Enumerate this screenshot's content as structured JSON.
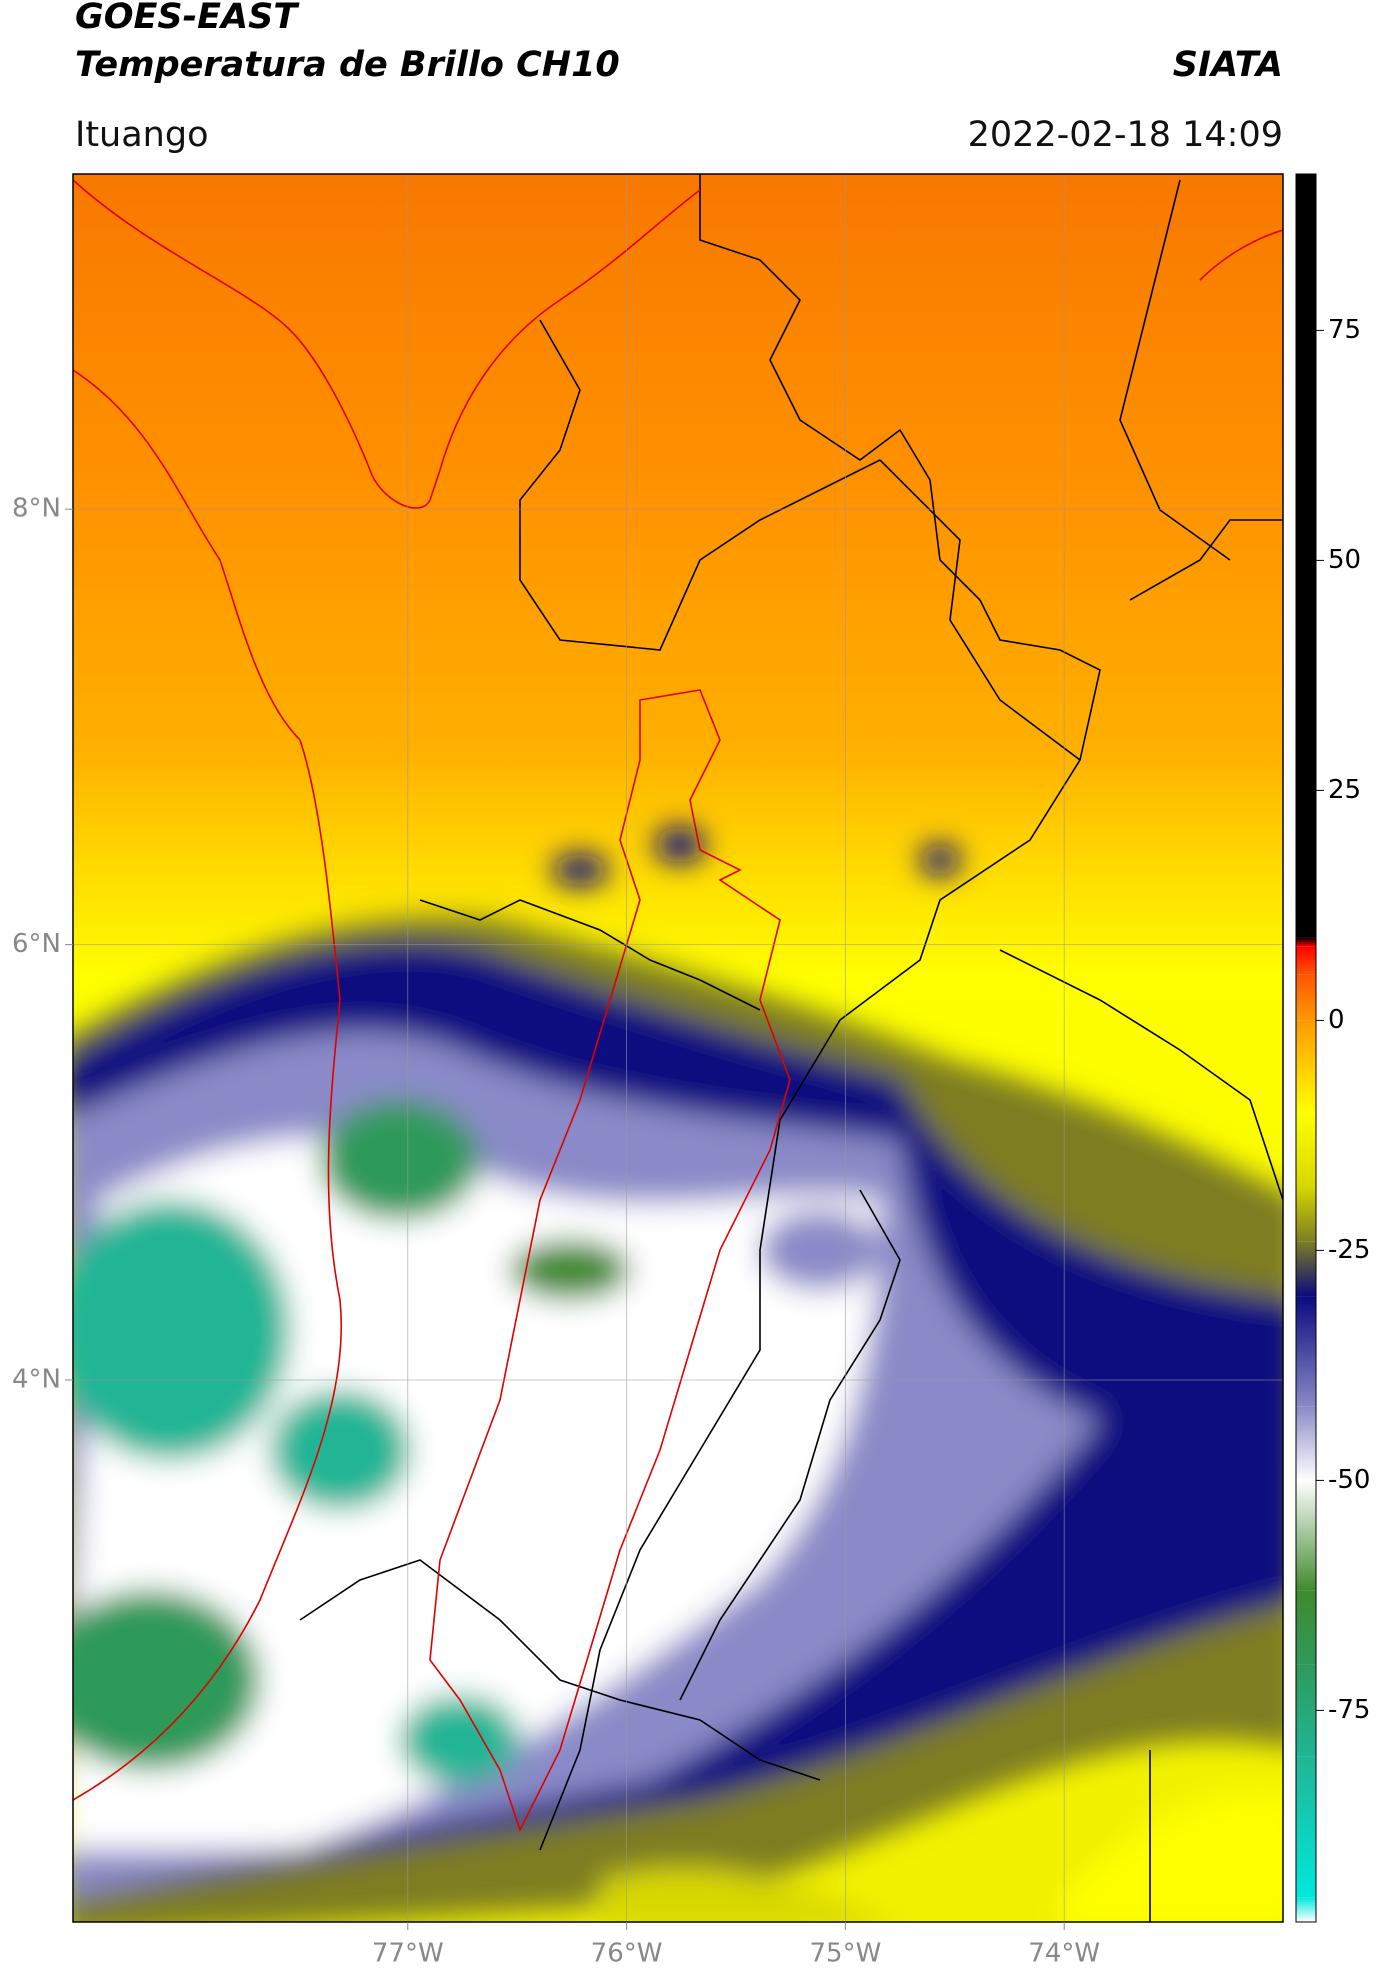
{
  "chart_data": {
    "type": "map",
    "title": "GOES-EAST",
    "subtitle": "Temperatura de Brillo CH10",
    "source": "SIATA",
    "location": "Ituango",
    "datetime": "2022-02-18 14:09",
    "xlim": [
      -78.53,
      -73.0
    ],
    "ylim": [
      1.51,
      9.54
    ],
    "xticks": [
      {
        "value": -77,
        "label": "77°W"
      },
      {
        "value": -76,
        "label": "76°W"
      },
      {
        "value": -75,
        "label": "75°W"
      },
      {
        "value": -74,
        "label": "74°W"
      }
    ],
    "yticks": [
      {
        "value": 4,
        "label": "4°N"
      },
      {
        "value": 6,
        "label": "6°N"
      },
      {
        "value": 8,
        "label": "8°N"
      }
    ],
    "grid": true,
    "colorbar": {
      "lim": [
        -98,
        92
      ],
      "ticks": [
        75,
        50,
        25,
        0,
        -25,
        -50,
        -75
      ],
      "stops": [
        {
          "value": -98,
          "color": "#ffffff"
        },
        {
          "value": -95.3,
          "color": "#00e8dc"
        },
        {
          "value": -80,
          "color": "#20b595"
        },
        {
          "value": -70,
          "color": "#2e9a5a"
        },
        {
          "value": -62,
          "color": "#3f8a2e"
        },
        {
          "value": -50,
          "color": "#ffffff"
        },
        {
          "value": -42,
          "color": "#8a8ac8"
        },
        {
          "value": -30,
          "color": "#0a0a80"
        },
        {
          "value": -24,
          "color": "#7d7d22"
        },
        {
          "value": -18,
          "color": "#d8d800"
        },
        {
          "value": -10,
          "color": "#ffff00"
        },
        {
          "value": 0,
          "color": "#ff9900"
        },
        {
          "value": 5,
          "color": "#ff5500"
        },
        {
          "value": 8,
          "color": "#ff0000"
        },
        {
          "value": 9,
          "color": "#000000"
        },
        {
          "value": 92,
          "color": "#000000"
        }
      ]
    }
  }
}
